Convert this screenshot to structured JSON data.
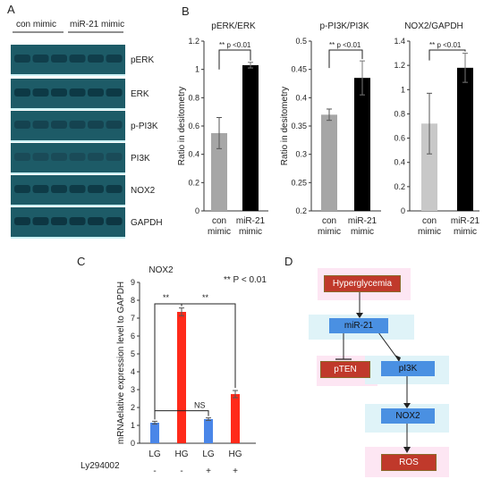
{
  "panels": {
    "a": "A",
    "b": "B",
    "c": "C",
    "d": "D"
  },
  "blot": {
    "lane_groups": [
      "con mimic",
      "miR-21 mimic"
    ],
    "bands": [
      "pERK",
      "ERK",
      "p-PI3K",
      "PI3K",
      "NOX2",
      "GAPDH"
    ]
  },
  "chart_data": [
    {
      "type": "bar",
      "title": "pERK/ERK",
      "ylabel": "Ratio in desitometry",
      "categories": [
        "con mimic",
        "miR-21 mimic"
      ],
      "values": [
        0.55,
        1.03
      ],
      "errors": [
        0.11,
        0.02
      ],
      "ylim": [
        0,
        1.2
      ],
      "yticks": [
        "0",
        "0.2",
        "0.4",
        "0.6",
        "0.8",
        "1",
        "1.2"
      ],
      "colors": [
        "#a6a6a6",
        "#000000"
      ],
      "annotation": "** p <0.01"
    },
    {
      "type": "bar",
      "title": "p-PI3K/PI3K",
      "ylabel": "Ratio in desitometry",
      "categories": [
        "con mimic",
        "miR-21 mimic"
      ],
      "values": [
        0.37,
        0.435
      ],
      "errors": [
        0.01,
        0.03
      ],
      "ylim": [
        0.2,
        0.5
      ],
      "yticks": [
        "0.2",
        "0.25",
        "0.3",
        "0.35",
        "0.4",
        "0.45",
        "0.5"
      ],
      "colors": [
        "#a6a6a6",
        "#000000"
      ],
      "annotation": "** p <0.01"
    },
    {
      "type": "bar",
      "title": "NOX2/GAPDH",
      "ylabel": "",
      "categories": [
        "con mimic",
        "miR-21 mimic"
      ],
      "values": [
        0.72,
        1.18
      ],
      "errors": [
        0.25,
        0.12
      ],
      "ylim": [
        0,
        1.4
      ],
      "yticks": [
        "0",
        "0.2",
        "0.4",
        "0.6",
        "0.8",
        "1",
        "1.2",
        "1.4"
      ],
      "colors": [
        "#c8c8c8",
        "#000000"
      ],
      "annotation": "** p <0.01"
    },
    {
      "type": "bar",
      "title": "NOX2",
      "ylabel": "mRNAelative expression level to GAPDH",
      "categories": [
        "LG",
        "HG",
        "LG",
        "HG"
      ],
      "ly_label": "Ly294002",
      "ly_signs": [
        "-",
        "-",
        "+",
        "+"
      ],
      "values": [
        1.15,
        7.35,
        1.35,
        2.75
      ],
      "errors": [
        0.08,
        0.22,
        0.07,
        0.2
      ],
      "ylim": [
        0,
        9
      ],
      "yticks": [
        "0",
        "1",
        "2",
        "3",
        "4",
        "5",
        "6",
        "7",
        "8",
        "9"
      ],
      "colors": [
        "#4a86e8",
        "#ff2a1a",
        "#4a86e8",
        "#ff2a1a"
      ],
      "legend_note": "** P < 0.01",
      "sig_labels": [
        "**",
        "**",
        "NS"
      ]
    }
  ],
  "pathway": {
    "nodes": [
      "Hyperglycemia",
      "miR-21",
      "pTEN",
      "pI3K",
      "NOX2",
      "ROS"
    ]
  }
}
